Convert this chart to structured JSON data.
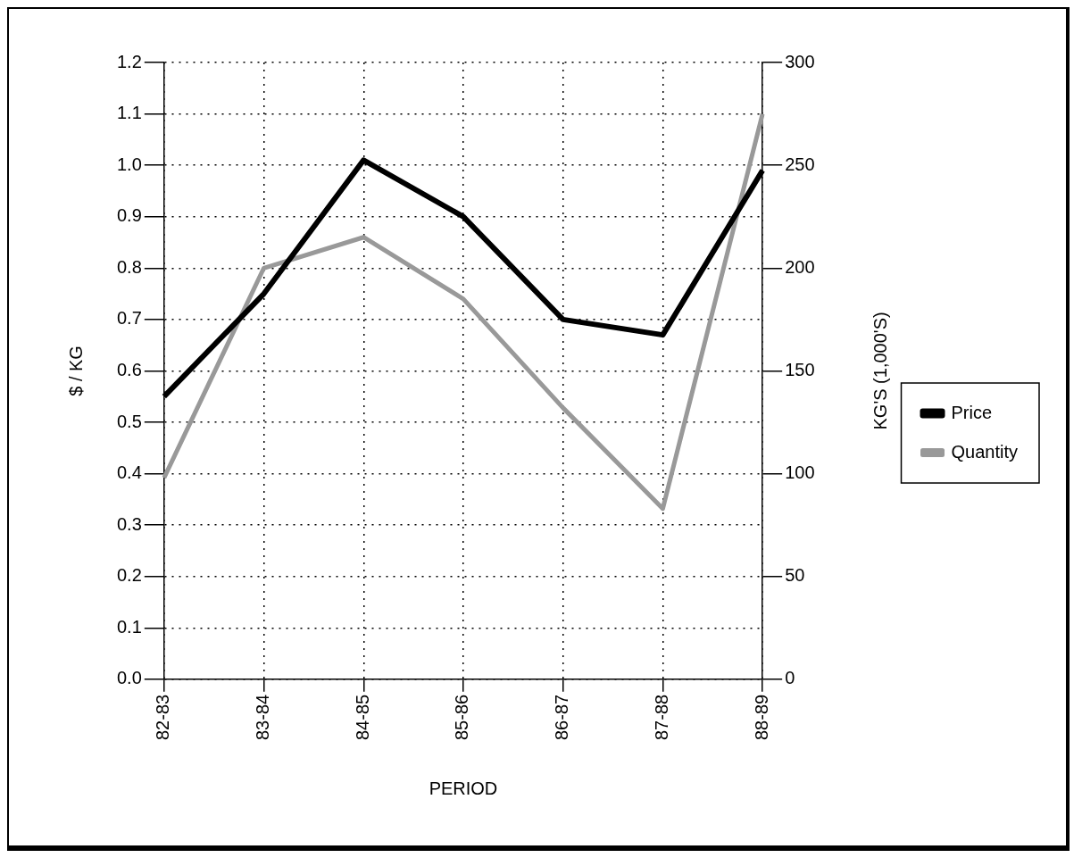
{
  "chart_data": {
    "type": "line",
    "xlabel": "PERIOD",
    "ylabel": "$ / KG",
    "y2label": "KG'S (1,000'S)",
    "categories": [
      "82-83",
      "83-84",
      "84-85",
      "85-86",
      "86-87",
      "87-88",
      "88-89"
    ],
    "series": [
      {
        "name": "Price",
        "color": "#000000",
        "values": [
          0.55,
          0.75,
          1.01,
          0.9,
          0.7,
          0.67,
          0.99
        ]
      },
      {
        "name": "Quantity",
        "color": "#999999",
        "axis": "y2",
        "values": [
          98,
          200,
          215,
          185,
          132,
          83,
          275
        ]
      }
    ],
    "ylim": [
      0,
      1.2
    ],
    "yticks": [
      {
        "value": 0,
        "label": "0.0"
      },
      0.1,
      0.2,
      0.3,
      0.4,
      0.5,
      0.6,
      0.7,
      0.8,
      0.9,
      {
        "value": 1,
        "label": "1.0"
      },
      1.1,
      1.2
    ],
    "y2lim": [
      0,
      300
    ],
    "y2ticks": [
      0,
      50,
      100,
      150,
      200,
      250,
      300
    ],
    "grid": true,
    "legend": "right",
    "marker": "none",
    "line_style": "solid"
  }
}
